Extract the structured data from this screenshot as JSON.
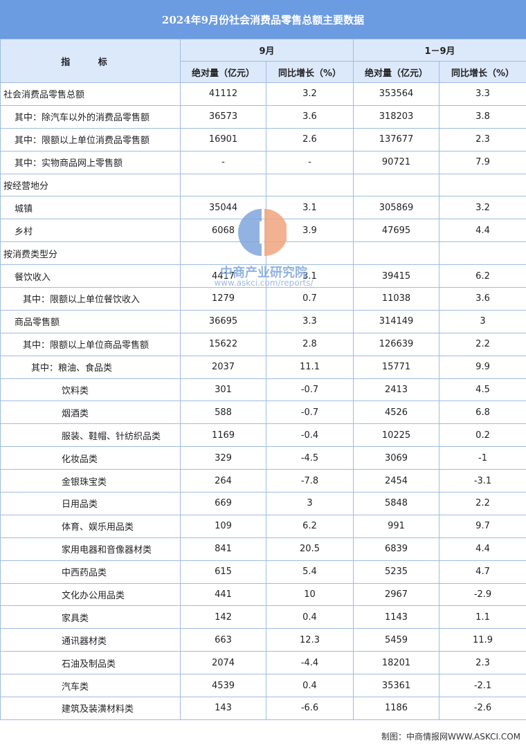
{
  "title": "2024年9月份社会消费品零售总额主要数据",
  "header": {
    "indicator": "指 标",
    "period1": "9月",
    "period2": "1－9月",
    "abs_label": "绝对量（亿元）",
    "yoy_label": "同比增长（%）"
  },
  "rows": [
    {
      "label": "社会消费品零售总额",
      "indent": 0,
      "a": "41112",
      "b": "3.2",
      "c": "353564",
      "d": "3.3"
    },
    {
      "label": "其中：除汽车以外的消费品零售额",
      "indent": 1,
      "a": "36573",
      "b": "3.6",
      "c": "318203",
      "d": "3.8"
    },
    {
      "label": "其中：限额以上单位消费品零售额",
      "indent": 1,
      "a": "16901",
      "b": "2.6",
      "c": "137677",
      "d": "2.3"
    },
    {
      "label": "其中：实物商品网上零售额",
      "indent": 1,
      "a": "-",
      "b": "-",
      "c": "90721",
      "d": "7.9"
    },
    {
      "label": "按经营地分",
      "indent": 0,
      "a": "",
      "b": "",
      "c": "",
      "d": ""
    },
    {
      "label": "城镇",
      "indent": 1,
      "a": "35044",
      "b": "3.1",
      "c": "305869",
      "d": "3.2"
    },
    {
      "label": "乡村",
      "indent": 1,
      "a": "6068",
      "b": "3.9",
      "c": "47695",
      "d": "4.4"
    },
    {
      "label": "按消费类型分",
      "indent": 0,
      "a": "",
      "b": "",
      "c": "",
      "d": ""
    },
    {
      "label": "餐饮收入",
      "indent": 1,
      "a": "4417",
      "b": "3.1",
      "c": "39415",
      "d": "6.2"
    },
    {
      "label": "其中：限额以上单位餐饮收入",
      "indent": 2,
      "a": "1279",
      "b": "0.7",
      "c": "11038",
      "d": "3.6"
    },
    {
      "label": "商品零售额",
      "indent": 1,
      "a": "36695",
      "b": "3.3",
      "c": "314149",
      "d": "3"
    },
    {
      "label": "其中：限额以上单位商品零售额",
      "indent": 2,
      "a": "15622",
      "b": "2.8",
      "c": "126639",
      "d": "2.2"
    },
    {
      "label": "其中：粮油、食品类",
      "indent": 3,
      "a": "2037",
      "b": "11.1",
      "c": "15771",
      "d": "9.9"
    },
    {
      "label": "饮料类",
      "indent": 4,
      "a": "301",
      "b": "-0.7",
      "c": "2413",
      "d": "4.5"
    },
    {
      "label": "烟酒类",
      "indent": 4,
      "a": "588",
      "b": "-0.7",
      "c": "4526",
      "d": "6.8"
    },
    {
      "label": "服装、鞋帽、针纺织品类",
      "indent": 4,
      "a": "1169",
      "b": "-0.4",
      "c": "10225",
      "d": "0.2"
    },
    {
      "label": "化妆品类",
      "indent": 4,
      "a": "329",
      "b": "-4.5",
      "c": "3069",
      "d": "-1"
    },
    {
      "label": "金银珠宝类",
      "indent": 4,
      "a": "264",
      "b": "-7.8",
      "c": "2454",
      "d": "-3.1"
    },
    {
      "label": "日用品类",
      "indent": 4,
      "a": "669",
      "b": "3",
      "c": "5848",
      "d": "2.2"
    },
    {
      "label": "体育、娱乐用品类",
      "indent": 4,
      "a": "109",
      "b": "6.2",
      "c": "991",
      "d": "9.7"
    },
    {
      "label": "家用电器和音像器材类",
      "indent": 4,
      "a": "841",
      "b": "20.5",
      "c": "6839",
      "d": "4.4"
    },
    {
      "label": "中西药品类",
      "indent": 4,
      "a": "615",
      "b": "5.4",
      "c": "5235",
      "d": "4.7"
    },
    {
      "label": "文化办公用品类",
      "indent": 4,
      "a": "441",
      "b": "10",
      "c": "2967",
      "d": "-2.9"
    },
    {
      "label": "家具类",
      "indent": 4,
      "a": "142",
      "b": "0.4",
      "c": "1143",
      "d": "1.1"
    },
    {
      "label": "通讯器材类",
      "indent": 4,
      "a": "663",
      "b": "12.3",
      "c": "5459",
      "d": "11.9"
    },
    {
      "label": "石油及制品类",
      "indent": 4,
      "a": "2074",
      "b": "-4.4",
      "c": "18201",
      "d": "2.3"
    },
    {
      "label": "汽车类",
      "indent": 4,
      "a": "4539",
      "b": "0.4",
      "c": "35361",
      "d": "-2.1"
    },
    {
      "label": "建筑及装潢材料类",
      "indent": 4,
      "a": "143",
      "b": "-6.6",
      "c": "1186",
      "d": "-2.6"
    }
  ],
  "watermark": {
    "name": "中商产业研究院",
    "url": "www.askci.com/reports/"
  },
  "source": "制图：中商情报网WWW.ASKCI.COM",
  "colors": {
    "title_bg": "#6b9be0",
    "header_bg": "#dce9fb",
    "border": "#9fbbe0"
  }
}
